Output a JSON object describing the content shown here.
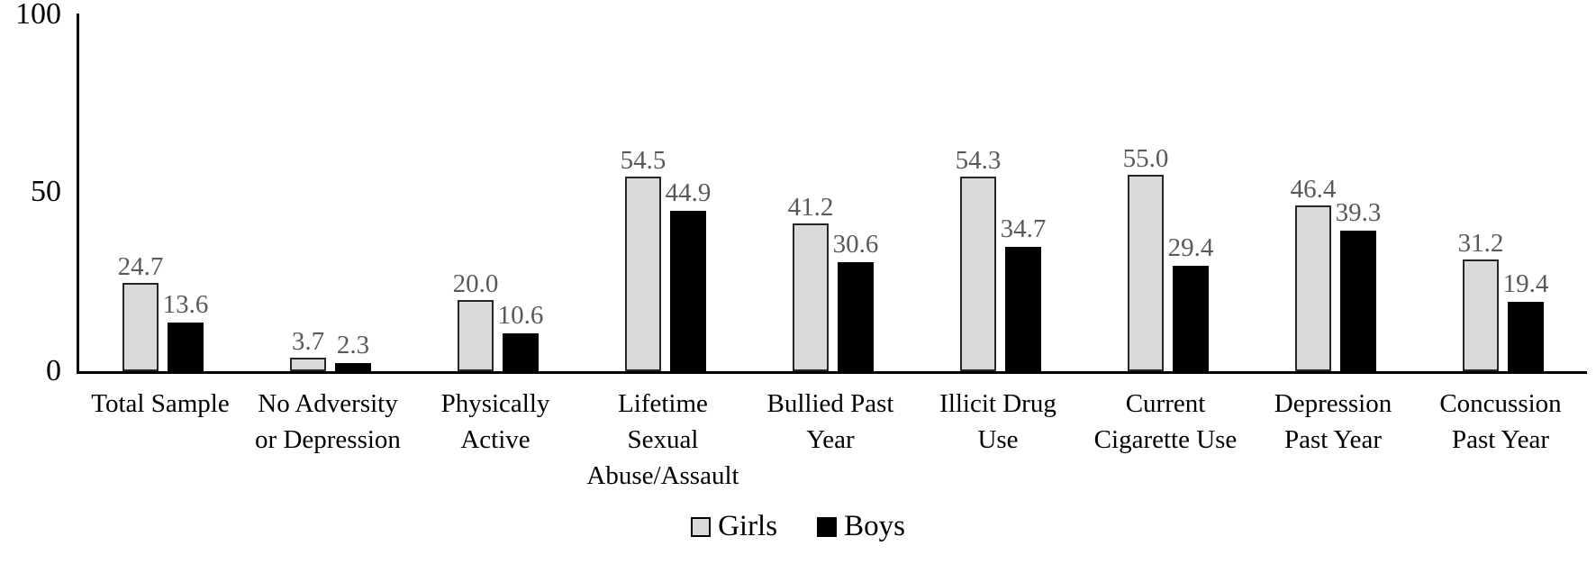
{
  "chart_data": {
    "type": "bar",
    "title": "",
    "xlabel": "",
    "ylabel": "",
    "ylim": [
      0,
      100
    ],
    "yticks": [
      "100",
      "50",
      "0"
    ],
    "grid": false,
    "legend_position": "bottom",
    "categories": [
      "Total Sample",
      "No Adversity\nor Depression",
      "Physically\nActive",
      "Lifetime\nSexual\nAbuse/Assault",
      "Bullied Past\nYear",
      "Illicit Drug\nUse",
      "Current\nCigarette Use",
      "Depression\nPast Year",
      "Concussion\nPast Year"
    ],
    "series": [
      {
        "name": "Girls",
        "color": "#d9d9d9",
        "values": [
          24.7,
          3.7,
          20.0,
          54.5,
          41.2,
          54.3,
          55.0,
          46.4,
          31.2
        ],
        "value_labels": [
          "24.7",
          "3.7",
          "20.0",
          "54.5",
          "41.2",
          "54.3",
          "55.0",
          "46.4",
          "31.2"
        ]
      },
      {
        "name": "Boys",
        "color": "#000000",
        "values": [
          13.6,
          2.3,
          10.6,
          44.9,
          30.6,
          34.7,
          29.4,
          39.3,
          19.4
        ],
        "value_labels": [
          "13.6",
          "2.3",
          "10.6",
          "44.9",
          "30.6",
          "34.7",
          "29.4",
          "39.3",
          "19.4"
        ]
      }
    ],
    "colors": {
      "value_label": "#595959",
      "axis": "#000000",
      "girls_fill": "#d9d9d9",
      "girls_border": "#262626",
      "boys_fill": "#000000"
    }
  }
}
